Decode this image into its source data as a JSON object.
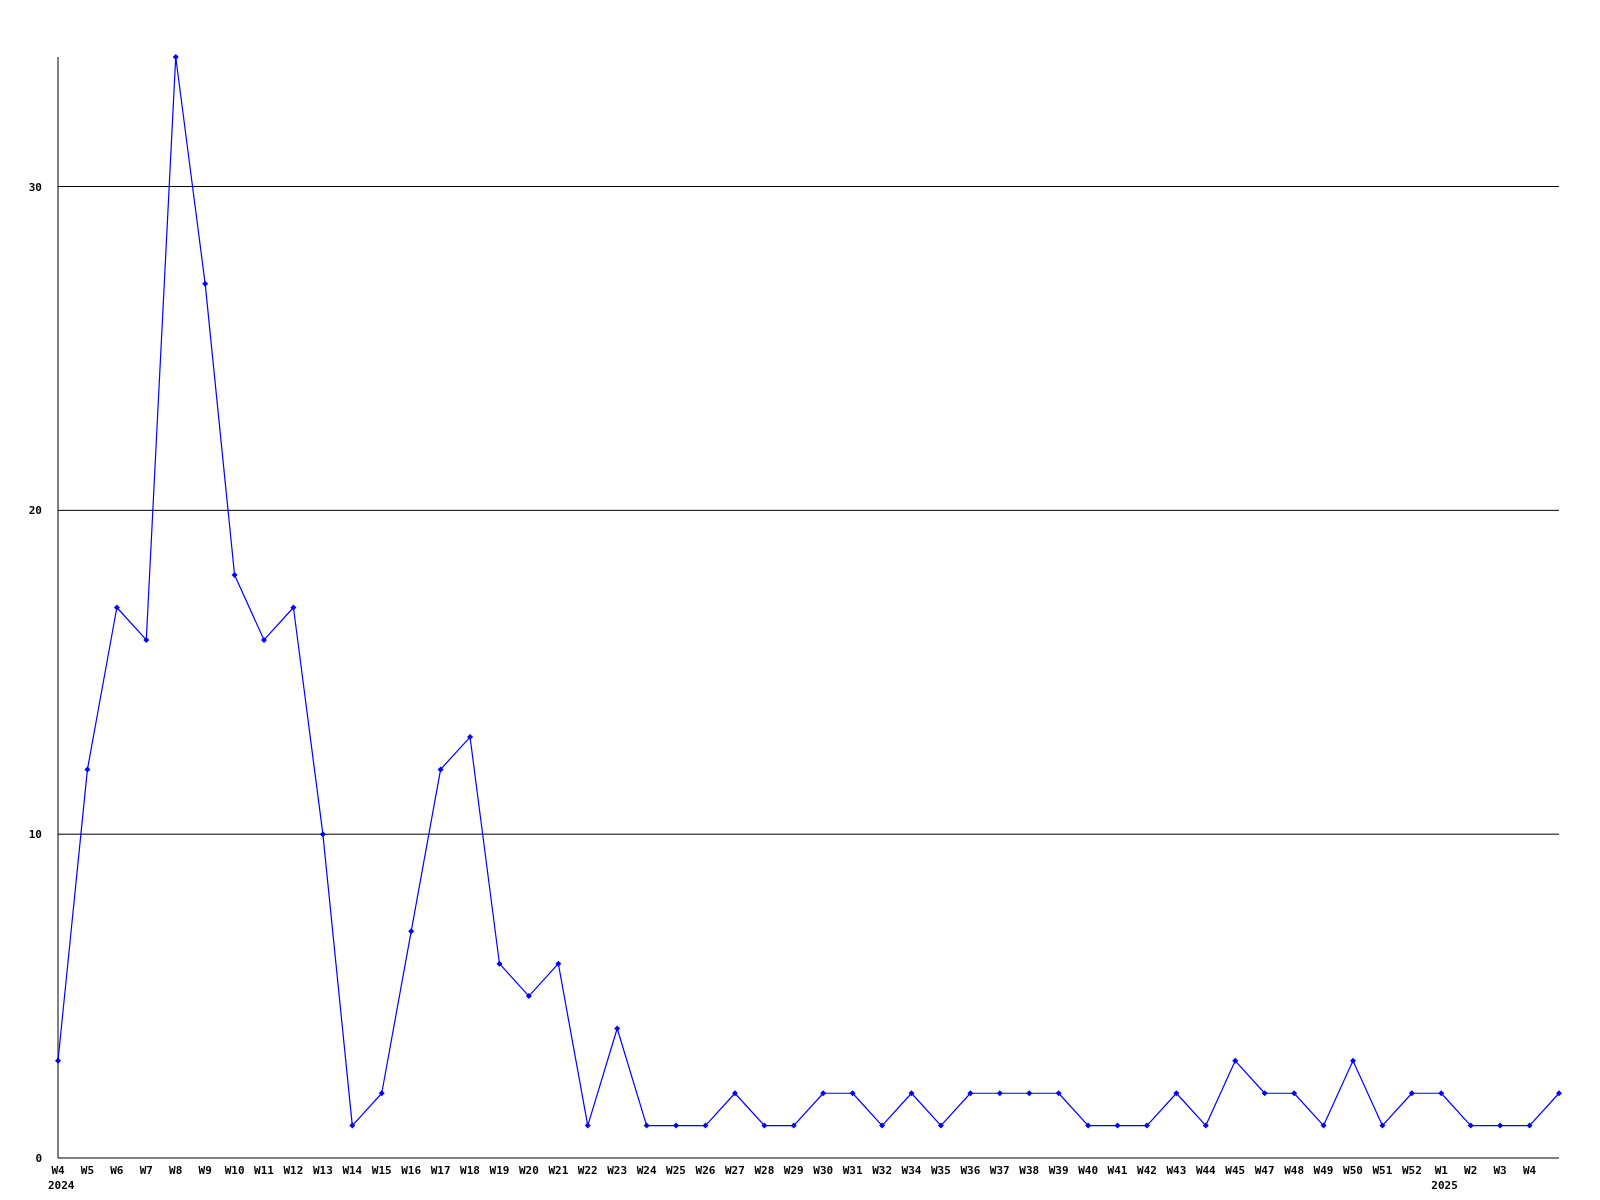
{
  "chart_data": {
    "type": "line",
    "categories": [
      "W4",
      "W5",
      "W6",
      "W7",
      "W8",
      "W9",
      "W10",
      "W11",
      "W12",
      "W13",
      "W14",
      "W15",
      "W16",
      "W17",
      "W18",
      "W19",
      "W20",
      "W21",
      "W22",
      "W23",
      "W24",
      "W25",
      "W26",
      "W27",
      "W28",
      "W29",
      "W30",
      "W31",
      "W32",
      "W34",
      "W35",
      "W36",
      "W37",
      "W38",
      "W39",
      "W40",
      "W41",
      "W42",
      "W43",
      "W44",
      "W45",
      "W47",
      "W48",
      "W49",
      "W50",
      "W51",
      "W52",
      "W1",
      "W2",
      "W3",
      "W4",
      null
    ],
    "values": [
      3,
      12,
      17,
      16,
      34,
      27,
      18,
      16,
      17,
      10,
      1,
      2,
      7,
      12,
      13,
      6,
      5,
      6,
      1,
      4,
      1,
      1,
      1,
      2,
      1,
      1,
      2,
      2,
      1,
      2,
      1,
      2,
      2,
      2,
      2,
      1,
      1,
      1,
      2,
      1,
      3,
      2,
      2,
      1,
      3,
      1,
      2,
      2,
      1,
      1,
      1,
      2
    ],
    "color": "#0000ff",
    "marker": "diamond",
    "ylim": [
      0,
      34
    ],
    "yticks": [
      0,
      10,
      20,
      30
    ],
    "grid": "y",
    "annotations": [
      "2024",
      "2025"
    ]
  }
}
